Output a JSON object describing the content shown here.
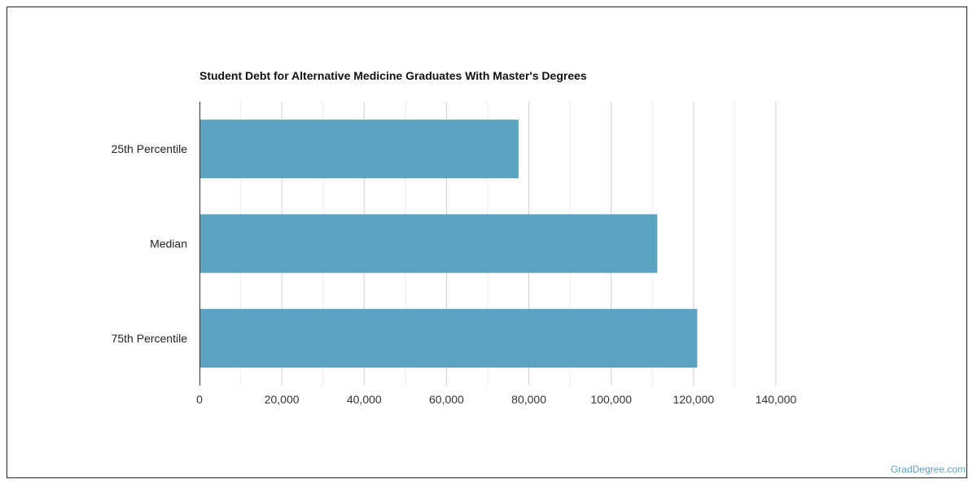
{
  "chart_data": {
    "type": "bar",
    "orientation": "horizontal",
    "title": "Student Debt for Alternative Medicine Graduates With Master's Degrees",
    "categories": [
      "25th Percentile",
      "Median",
      "75th Percentile"
    ],
    "values": [
      77500,
      111200,
      120900
    ],
    "xlim": [
      0,
      140000
    ],
    "x_ticks": [
      0,
      20000,
      40000,
      60000,
      80000,
      100000,
      120000,
      140000
    ],
    "x_tick_labels": [
      "0",
      "20,000",
      "40,000",
      "60,000",
      "80,000",
      "100,000",
      "120,000",
      "140,000"
    ],
    "grid": true,
    "bar_color": "#5ba3c0",
    "xlabel": "",
    "ylabel": ""
  },
  "footer": {
    "watermark": "GradDegree.com"
  }
}
